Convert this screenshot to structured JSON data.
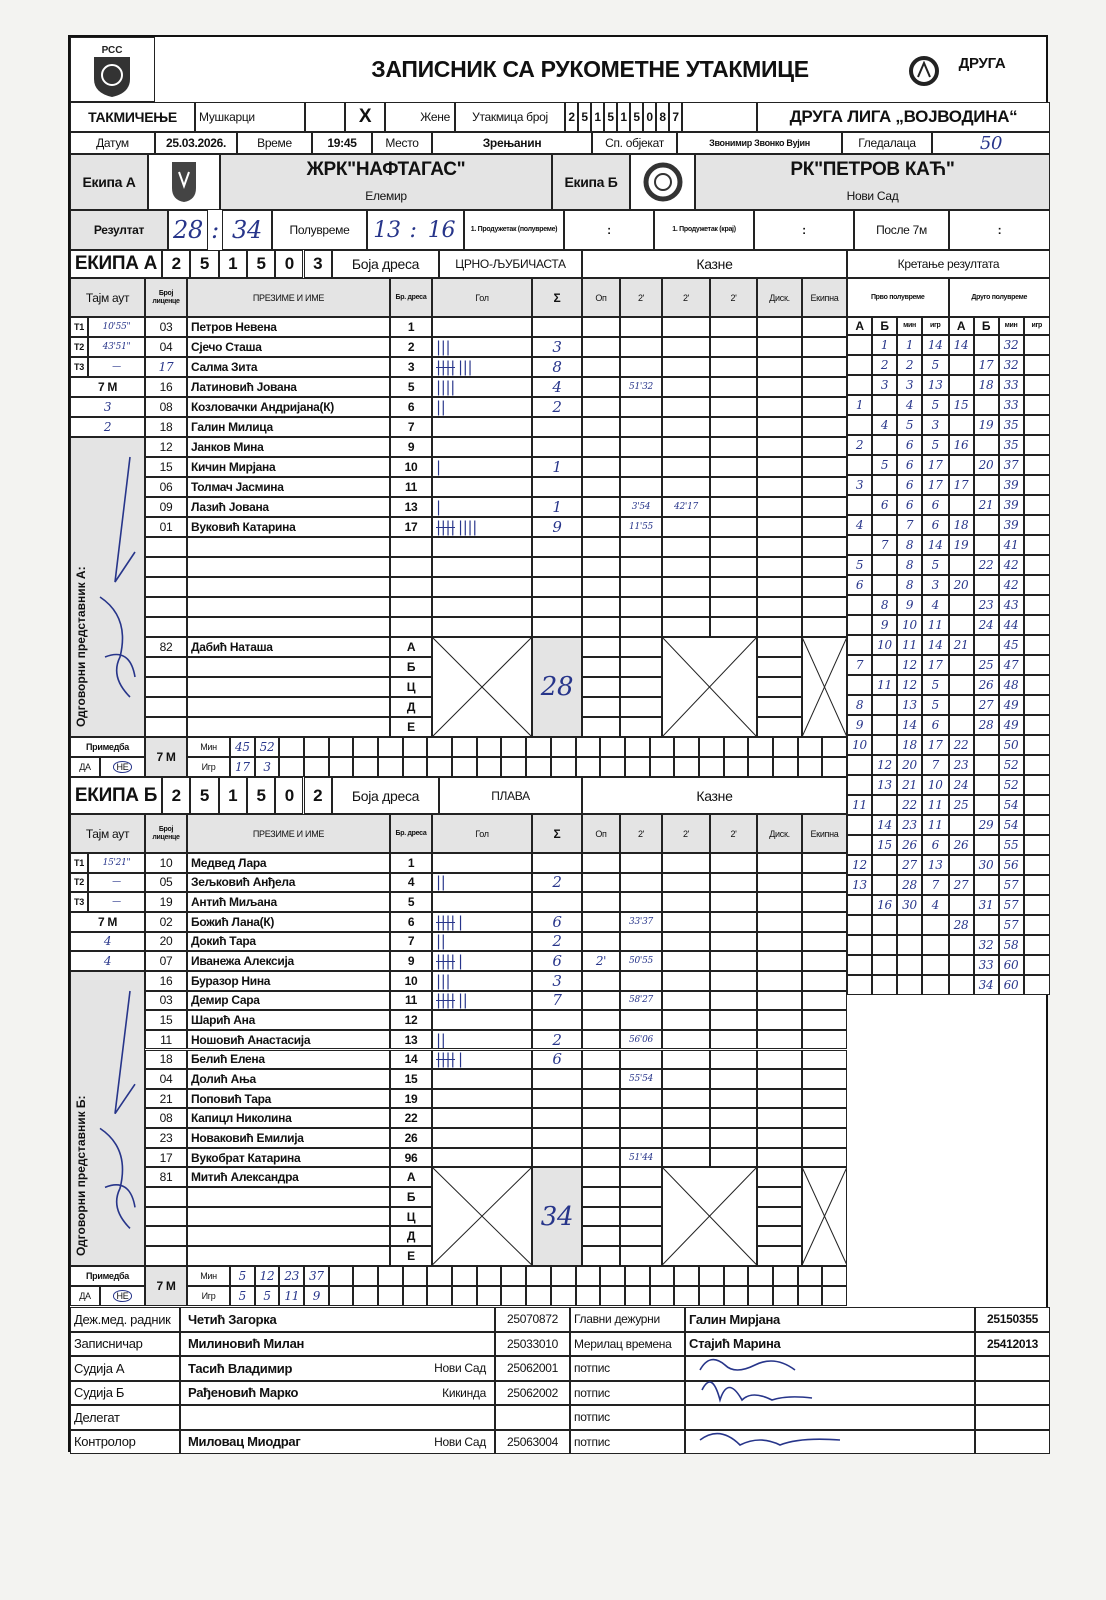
{
  "header": {
    "federation_logo": "РСС",
    "title": "ЗАПИСНИК СА РУКОМЕТНЕ УТАКМИЦЕ",
    "league_logo": "ДРУГА"
  },
  "match": {
    "competition_label": "ТАКМИЧЕЊЕ",
    "men_label": "Мушкарци",
    "men_mark": "",
    "women_mark": "X",
    "women_label": "Жене",
    "match_no_label": "Утакмица број",
    "match_no_digits": [
      "2",
      "5",
      "1",
      "5",
      "1",
      "5",
      "0",
      "8",
      "7"
    ],
    "league": "ДРУГА ЛИГА „ВОЈВОДИНА“",
    "date_label": "Датум",
    "date": "25.03.2026.",
    "time_label": "Време",
    "time": "19:45",
    "place_label": "Место",
    "place": "Зрењанин",
    "venue_label": "Сп. објекат",
    "venue": "Звонимир Звонко Вујин",
    "spectators_label": "Гледалаца",
    "spectators": "50"
  },
  "teams_row": {
    "team_a_label": "Екипа А",
    "team_a_name": "ЖРК\"НАФТАГАС\"",
    "team_a_city": "Елемир",
    "team_b_label": "Екипа Б",
    "team_b_name": "РК\"ПЕТРОВ КАЋ\"",
    "team_b_city": "Нови Сад"
  },
  "result": {
    "label": "Резултат",
    "final_a": "28",
    "final_b": "34",
    "halftime_label": "Полувреме",
    "halftime_a": "13",
    "halftime_b": "16",
    "et1_label": "1. Продужетак (полувреме)",
    "et2_label": "1. Продужетак (крај)",
    "after7m_label": "После 7м",
    "separator": ":"
  },
  "columns": {
    "timeout": "Тајм аут",
    "license": "Број лиценце",
    "name": "ПРЕЗИМЕ И ИМЕ",
    "jersey": "Бр. дреса",
    "goals": "Гол",
    "sum": "Σ",
    "warning": "Оп",
    "two_min": "2'",
    "disq": "Диск.",
    "team_penalty": "Екипна",
    "penalties": "Казне",
    "jersey_color_label": "Боја дреса",
    "seven_m": "7 M",
    "remark": "Примедба",
    "yes": "ДА",
    "no": "НЕ",
    "min": "Мин",
    "player": "Игр",
    "official_letters": [
      "А",
      "Б",
      "Ц",
      "Д",
      "Е"
    ],
    "timeout_labels": [
      "T1",
      "T2",
      "T3"
    ]
  },
  "team_a": {
    "label": "ЕКИПА А",
    "code": [
      "2",
      "5",
      "1",
      "5",
      "0",
      "3"
    ],
    "jersey_color": "ЦРНО-ЉУБИЧАСТА",
    "timeouts": [
      "10'55\"",
      "43'51\"",
      "—"
    ],
    "seven_m": [
      "3",
      "2"
    ],
    "representative_label": "Одговорни представник А:",
    "players": [
      {
        "license": "03",
        "name": "Петров Невена",
        "jersey": "1",
        "goals": 0,
        "sum": "",
        "op": "",
        "p1": "",
        "p2": ""
      },
      {
        "license": "04",
        "name": "Сјечо Сташа",
        "jersey": "2",
        "goals": 3,
        "sum": "3",
        "op": "",
        "p1": "",
        "p2": ""
      },
      {
        "license": "17",
        "name": "Салма Зита",
        "jersey": "3",
        "goals": 8,
        "sum": "8",
        "op": "",
        "p1": "",
        "p2": ""
      },
      {
        "license": "16",
        "name": "Латиновић Јована",
        "jersey": "5",
        "goals": 4,
        "sum": "4",
        "op": "",
        "p1": "51'32",
        "p2": ""
      },
      {
        "license": "08",
        "name": "Козловачки Андријана(К)",
        "jersey": "6",
        "goals": 2,
        "sum": "2",
        "op": "",
        "p1": "",
        "p2": ""
      },
      {
        "license": "18",
        "name": "Галин Милица",
        "jersey": "7",
        "goals": 0,
        "sum": "",
        "op": "",
        "p1": "",
        "p2": ""
      },
      {
        "license": "12",
        "name": "Јанков Мина",
        "jersey": "9",
        "goals": 0,
        "sum": "",
        "op": "",
        "p1": "",
        "p2": ""
      },
      {
        "license": "15",
        "name": "Кичин Мирјана",
        "jersey": "10",
        "goals": 1,
        "sum": "1",
        "op": "",
        "p1": "",
        "p2": ""
      },
      {
        "license": "06",
        "name": "Толмач Јасмина",
        "jersey": "11",
        "goals": 0,
        "sum": "",
        "op": "",
        "p1": "",
        "p2": ""
      },
      {
        "license": "09",
        "name": "Лазић Јована",
        "jersey": "13",
        "goals": 1,
        "sum": "1",
        "op": "",
        "p1": "3'54",
        "p2": "42'17"
      },
      {
        "license": "01",
        "name": "Вуковић Катарина",
        "jersey": "17",
        "goals": 9,
        "sum": "9",
        "op": "",
        "p1": "11'55",
        "p2": ""
      }
    ],
    "officials": [
      {
        "license": "82",
        "name": "Дабић Наташа"
      }
    ],
    "total": "28",
    "remark_yes_no": "НЕ",
    "seven_m_min": [
      "45",
      "52"
    ],
    "seven_m_player": [
      "17",
      "3"
    ]
  },
  "team_b": {
    "label": "ЕКИПА Б",
    "code": [
      "2",
      "5",
      "1",
      "5",
      "0",
      "2"
    ],
    "jersey_color": "ПЛАВА",
    "timeouts": [
      "15'21\"",
      "—",
      "—"
    ],
    "seven_m": [
      "4",
      "4"
    ],
    "representative_label": "Одговорни представник Б:",
    "players": [
      {
        "license": "10",
        "name": "Медвед Лара",
        "jersey": "1",
        "goals": 0,
        "sum": "",
        "op": "",
        "p1": "",
        "p2": ""
      },
      {
        "license": "05",
        "name": "Зељковић Анђела",
        "jersey": "4",
        "goals": 2,
        "sum": "2",
        "op": "",
        "p1": "",
        "p2": ""
      },
      {
        "license": "19",
        "name": "Антић Миљана",
        "jersey": "5",
        "goals": 0,
        "sum": "",
        "op": "",
        "p1": "",
        "p2": ""
      },
      {
        "license": "02",
        "name": "Божић Лана(К)",
        "jersey": "6",
        "goals": 6,
        "sum": "6",
        "op": "",
        "p1": "33'37",
        "p2": "",
        "circled": true
      },
      {
        "license": "20",
        "name": "Докић Тара",
        "jersey": "7",
        "goals": 2,
        "sum": "2",
        "op": "",
        "p1": "",
        "p2": ""
      },
      {
        "license": "07",
        "name": "Иванежа Алексија",
        "jersey": "9",
        "goals": 6,
        "sum": "6",
        "op": "2'",
        "p1": "50'55",
        "p2": ""
      },
      {
        "license": "16",
        "name": "Буразор Нина",
        "jersey": "10",
        "goals": 3,
        "sum": "3",
        "op": "",
        "p1": "",
        "p2": ""
      },
      {
        "license": "03",
        "name": "Демир Сара",
        "jersey": "11",
        "goals": 7,
        "sum": "7",
        "op": "",
        "p1": "58'27",
        "p2": ""
      },
      {
        "license": "15",
        "name": "Шарић Ана",
        "jersey": "12",
        "goals": 0,
        "sum": "",
        "op": "",
        "p1": "",
        "p2": ""
      },
      {
        "license": "11",
        "name": "Ношовић Анастасија",
        "jersey": "13",
        "goals": 2,
        "sum": "2",
        "op": "",
        "p1": "56'06",
        "p2": ""
      },
      {
        "license": "18",
        "name": "Белић Елена",
        "jersey": "14",
        "goals": 6,
        "sum": "6",
        "op": "",
        "p1": "",
        "p2": ""
      },
      {
        "license": "04",
        "name": "Долић Ања",
        "jersey": "15",
        "goals": 0,
        "sum": "",
        "op": "",
        "p1": "55'54",
        "p2": ""
      },
      {
        "license": "21",
        "name": "Поповић Тара",
        "jersey": "19",
        "goals": 0,
        "sum": "",
        "op": "",
        "p1": "",
        "p2": ""
      },
      {
        "license": "08",
        "name": "Капицл Николина",
        "jersey": "22",
        "goals": 0,
        "sum": "",
        "op": "",
        "p1": "",
        "p2": ""
      },
      {
        "license": "23",
        "name": "Новаковић Емилија",
        "jersey": "26",
        "goals": 0,
        "sum": "",
        "op": "",
        "p1": "",
        "p2": ""
      },
      {
        "license": "17",
        "name": "Вукобрат Катарина",
        "jersey": "96",
        "goals": 0,
        "sum": "",
        "op": "",
        "p1": "51'44",
        "p2": ""
      }
    ],
    "officials": [
      {
        "license": "81",
        "name": "Митић Александра"
      }
    ],
    "total": "34",
    "remark_yes_no": "НЕ",
    "seven_m_min": [
      "5",
      "12",
      "23",
      "37"
    ],
    "seven_m_player": [
      "5",
      "5",
      "11",
      "9"
    ]
  },
  "running_score": {
    "title": "Кретање резултата",
    "first_half_label": "Прво полувреме",
    "second_half_label": "Друго полувреме",
    "col_labels": [
      "А",
      "Б",
      "мин",
      "игр",
      "А",
      "Б",
      "мин",
      "игр"
    ],
    "first_half": [
      [
        "",
        "1",
        "1",
        "14"
      ],
      [
        "",
        "2",
        "2",
        "5"
      ],
      [
        "",
        "3",
        "3",
        "13"
      ],
      [
        "1",
        "",
        "4",
        "5"
      ],
      [
        "",
        "4",
        "5",
        "3"
      ],
      [
        "2",
        "",
        "6",
        "5"
      ],
      [
        "",
        "5",
        "6",
        "17"
      ],
      [
        "3",
        "",
        "6",
        "17"
      ],
      [
        "",
        "6",
        "6",
        "6"
      ],
      [
        "4",
        "",
        "7",
        "6"
      ],
      [
        "",
        "7",
        "8",
        "14"
      ],
      [
        "5",
        "",
        "8",
        "5"
      ],
      [
        "6",
        "",
        "8",
        "3"
      ],
      [
        "",
        "8",
        "9",
        "4"
      ],
      [
        "",
        "9",
        "10",
        "11"
      ],
      [
        "",
        "10",
        "11",
        "14"
      ],
      [
        "7",
        "",
        "12",
        "17"
      ],
      [
        "",
        "11",
        "12",
        "5"
      ],
      [
        "8",
        "",
        "13",
        "5"
      ],
      [
        "9",
        "",
        "14",
        "6"
      ],
      [
        "10",
        "",
        "18",
        "17"
      ],
      [
        "",
        "12",
        "20",
        "7"
      ],
      [
        "",
        "13",
        "21",
        "10"
      ],
      [
        "11",
        "",
        "22",
        "11"
      ],
      [
        "",
        "14",
        "23",
        "11"
      ],
      [
        "",
        "15",
        "26",
        "6"
      ],
      [
        "12",
        "",
        "27",
        "13"
      ],
      [
        "13",
        "",
        "28",
        "7"
      ],
      [
        "",
        "16",
        "30",
        "4"
      ]
    ],
    "second_half": [
      [
        "14",
        "",
        "32"
      ],
      [
        "",
        "17",
        "32"
      ],
      [
        "",
        "18",
        "33"
      ],
      [
        "15",
        "",
        "33"
      ],
      [
        "",
        "19",
        "35"
      ],
      [
        "16",
        "",
        "35"
      ],
      [
        "",
        "20",
        "37"
      ],
      [
        "17",
        "",
        "39"
      ],
      [
        "",
        "21",
        "39"
      ],
      [
        "18",
        "",
        "39"
      ],
      [
        "19",
        "",
        "41"
      ],
      [
        "",
        "22",
        "42"
      ],
      [
        "20",
        "",
        "42"
      ],
      [
        "",
        "23",
        "43"
      ],
      [
        "",
        "24",
        "44"
      ],
      [
        "21",
        "",
        "45"
      ],
      [
        "",
        "25",
        "47"
      ],
      [
        "",
        "26",
        "48"
      ],
      [
        "",
        "27",
        "49"
      ],
      [
        "",
        "28",
        "49"
      ],
      [
        "22",
        "",
        "50"
      ],
      [
        "23",
        "",
        "52"
      ],
      [
        "24",
        "",
        "52"
      ],
      [
        "25",
        "",
        "54"
      ],
      [
        "",
        "29",
        "54"
      ],
      [
        "26",
        "",
        "55"
      ],
      [
        "",
        "30",
        "56"
      ],
      [
        "27",
        "",
        "57"
      ],
      [
        "",
        "31",
        "57"
      ],
      [
        "28",
        "",
        "57"
      ],
      [
        "",
        "32",
        "58"
      ],
      [
        "",
        "33",
        "60"
      ],
      [
        "",
        "34",
        "60"
      ]
    ]
  },
  "officials": [
    {
      "role": "Деж.мед. радник",
      "name": "Четић Загорка",
      "city": "",
      "id": "25070872",
      "role2": "Главни дежурни",
      "name2": "Галин Мирјана",
      "id2": "25150355"
    },
    {
      "role": "Записничар",
      "name": "Милиновић Милан",
      "city": "",
      "id": "25033010",
      "role2": "Мерилац времена",
      "name2": "Стајић Марина",
      "id2": "25412013"
    },
    {
      "role": "Судија А",
      "name": "Тасић Владимир",
      "city": "Нови Сад",
      "id": "25062001",
      "role2": "потпис",
      "name2": "",
      "id2": ""
    },
    {
      "role": "Судија Б",
      "name": "Рађеновић Марко",
      "city": "Кикинда",
      "id": "25062002",
      "role2": "потпис",
      "name2": "",
      "id2": ""
    },
    {
      "role": "Делегат",
      "name": "",
      "city": "",
      "id": "",
      "role2": "потпис",
      "name2": "",
      "id2": ""
    },
    {
      "role": "Контролор",
      "name": "Миловац Миодраг",
      "city": "Нови Сад",
      "id": "25063004",
      "role2": "потпис",
      "name2": "",
      "id2": ""
    }
  ]
}
